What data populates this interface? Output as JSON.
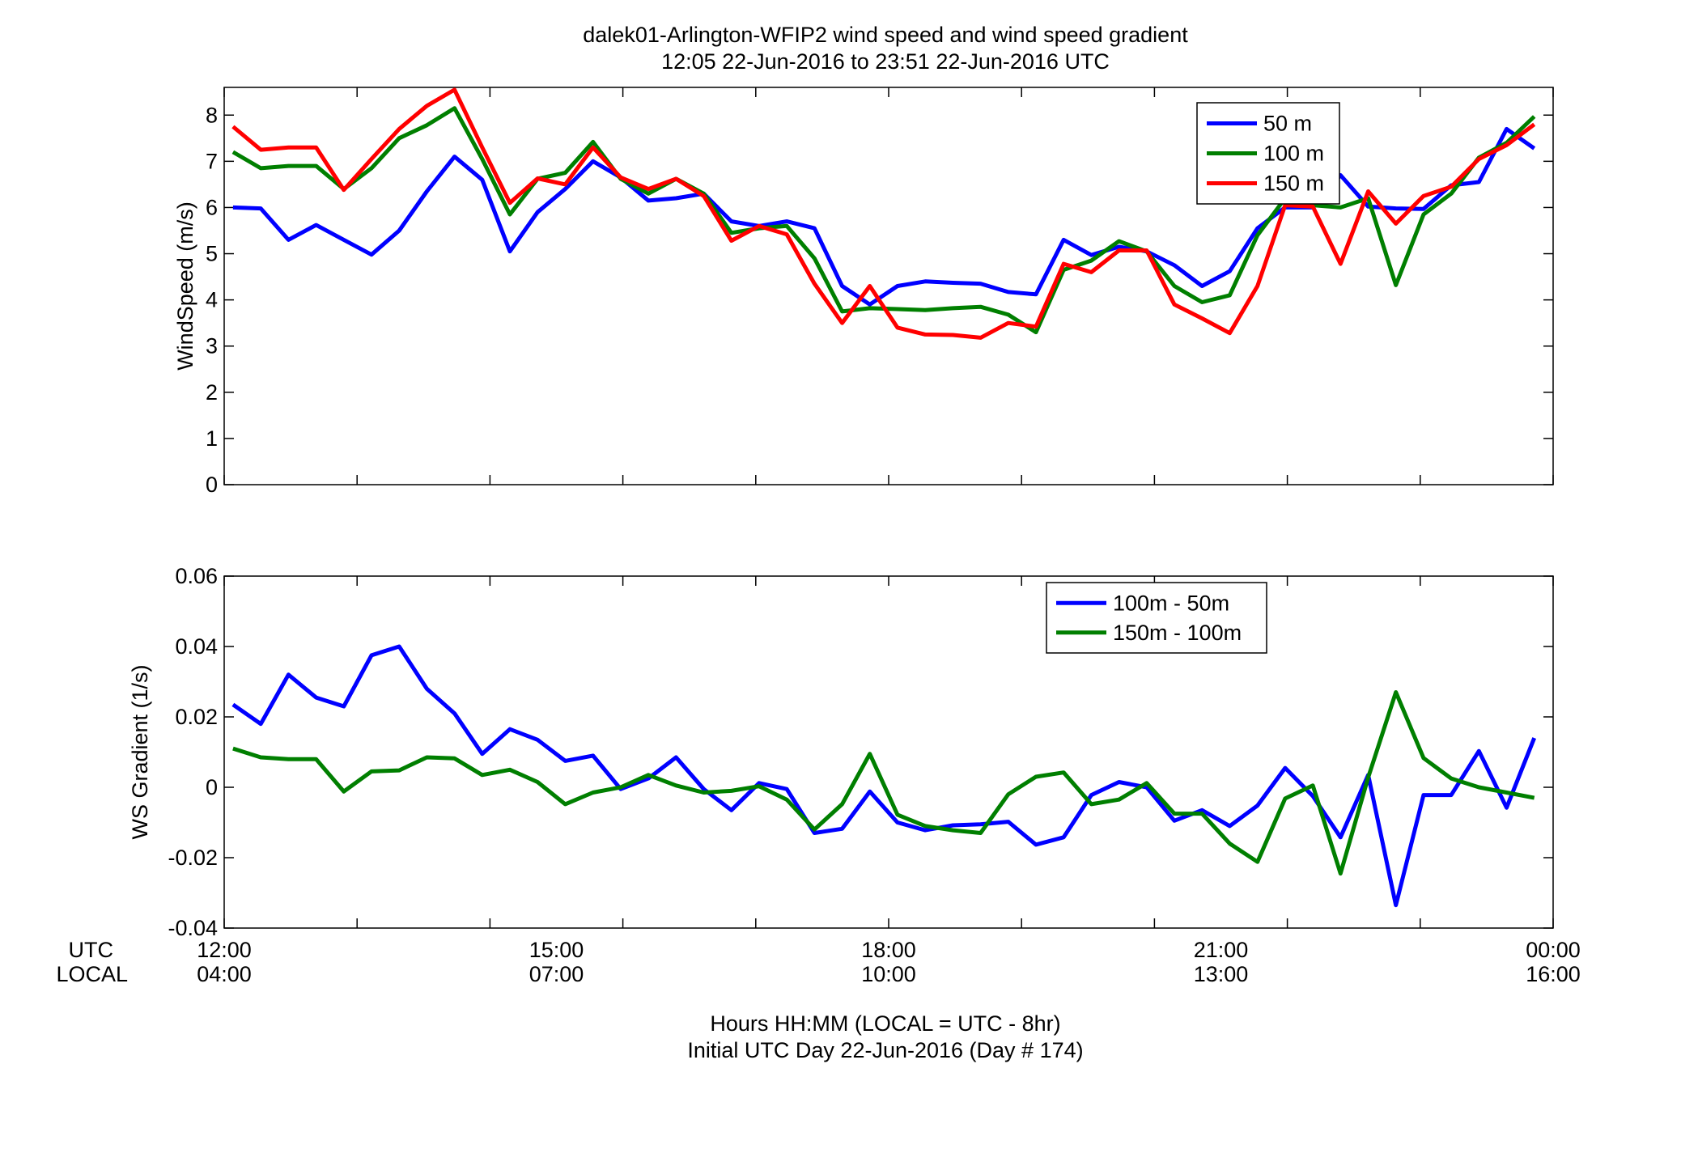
{
  "colors": {
    "blue": "#0000ff",
    "green": "#007f00",
    "red": "#ff0000",
    "axis": "#000000"
  },
  "figure": {
    "title_line1": "dalek01-Arlington-WFIP2  wind speed and wind speed gradient",
    "title_line2": "12:05 22-Jun-2016 to 23:51 22-Jun-2016  UTC",
    "row_label_utc": "UTC",
    "row_label_local": "LOCAL",
    "footer_line1": "Hours HH:MM  (LOCAL = UTC - 8hr)",
    "footer_line2": "Initial UTC Day 22-Jun-2016 (Day # 174)"
  },
  "chart_data": [
    {
      "type": "line",
      "ylabel": "WindSpeed (m/s)",
      "xlim": [
        12.0,
        24.0
      ],
      "ylim": [
        0,
        8.6
      ],
      "yticks": [
        0,
        1,
        2,
        3,
        4,
        5,
        6,
        7,
        8
      ],
      "xticks": [
        12,
        13.2,
        14.4,
        15.6,
        16.8,
        18.0,
        19.2,
        20.4,
        21.6,
        22.8,
        24.0
      ],
      "grid": false,
      "legend_position": "top-right",
      "x": [
        12.08,
        12.33,
        12.58,
        12.83,
        13.08,
        13.33,
        13.58,
        13.83,
        14.08,
        14.33,
        14.58,
        14.83,
        15.08,
        15.33,
        15.58,
        15.83,
        16.08,
        16.33,
        16.58,
        16.83,
        17.08,
        17.33,
        17.58,
        17.83,
        18.08,
        18.33,
        18.58,
        18.83,
        19.08,
        19.33,
        19.58,
        19.83,
        20.08,
        20.33,
        20.58,
        20.83,
        21.08,
        21.33,
        21.58,
        21.83,
        22.08,
        22.33,
        22.58,
        22.83,
        23.08,
        23.33,
        23.58,
        23.83
      ],
      "series": [
        {
          "name": "50 m",
          "color": "#0000ff",
          "values": [
            6.0,
            5.98,
            5.3,
            5.62,
            5.3,
            4.98,
            5.5,
            6.35,
            7.1,
            6.6,
            5.05,
            5.9,
            6.4,
            7.0,
            6.65,
            6.15,
            6.2,
            6.3,
            5.7,
            5.6,
            5.7,
            5.55,
            4.3,
            3.9,
            4.3,
            4.4,
            4.37,
            4.35,
            4.17,
            4.12,
            5.3,
            4.97,
            5.15,
            5.05,
            4.75,
            4.3,
            4.62,
            5.55,
            6.0,
            6.0,
            6.7,
            6.02,
            5.98,
            5.97,
            6.48,
            6.55,
            7.7,
            7.28
          ]
        },
        {
          "name": "100 m",
          "color": "#007f00",
          "values": [
            7.2,
            6.85,
            6.9,
            6.9,
            6.4,
            6.85,
            7.5,
            7.78,
            8.15,
            7.05,
            5.85,
            6.62,
            6.75,
            7.42,
            6.62,
            6.3,
            6.62,
            6.3,
            5.45,
            5.55,
            5.6,
            4.9,
            3.75,
            3.82,
            3.8,
            3.78,
            3.82,
            3.85,
            3.68,
            3.3,
            4.65,
            4.85,
            5.27,
            5.05,
            4.3,
            3.95,
            4.1,
            5.4,
            6.2,
            6.05,
            6.0,
            6.2,
            4.32,
            5.85,
            6.3,
            7.08,
            7.4,
            7.97
          ]
        },
        {
          "name": "150 m",
          "color": "#ff0000",
          "values": [
            7.75,
            7.25,
            7.3,
            7.3,
            6.38,
            7.05,
            7.7,
            8.2,
            8.55,
            7.3,
            6.1,
            6.63,
            6.5,
            7.3,
            6.65,
            6.4,
            6.62,
            6.25,
            5.28,
            5.6,
            5.42,
            4.35,
            3.5,
            4.3,
            3.4,
            3.25,
            3.24,
            3.18,
            3.5,
            3.42,
            4.78,
            4.6,
            5.07,
            5.07,
            3.9,
            3.6,
            3.28,
            4.3,
            6.05,
            6.02,
            4.78,
            6.35,
            5.65,
            6.25,
            6.45,
            7.05,
            7.35,
            7.8
          ]
        }
      ]
    },
    {
      "type": "line",
      "ylabel": "WS Gradient (1/s)",
      "xlim": [
        12.0,
        24.0
      ],
      "ylim": [
        -0.04,
        0.06
      ],
      "yticks": [
        -0.04,
        -0.02,
        0,
        0.02,
        0.04,
        0.06
      ],
      "ytick_labels": [
        "-0.04",
        "-0.02",
        "0",
        "0.02",
        "0.04",
        "0.06"
      ],
      "xticks": [
        12,
        13.2,
        14.4,
        15.6,
        16.8,
        18.0,
        19.2,
        20.4,
        21.6,
        22.8,
        24.0
      ],
      "xtick_labels_utc": {
        "12": "12:00",
        "15": "15:00",
        "18": "18:00",
        "21": "21:00",
        "24": "00:00"
      },
      "xtick_labels_local": {
        "12": "04:00",
        "15": "07:00",
        "18": "10:00",
        "21": "13:00",
        "24": "16:00"
      },
      "grid": false,
      "legend_position": "top-right",
      "x": [
        12.08,
        12.33,
        12.58,
        12.83,
        13.08,
        13.33,
        13.58,
        13.83,
        14.08,
        14.33,
        14.58,
        14.83,
        15.08,
        15.33,
        15.58,
        15.83,
        16.08,
        16.33,
        16.58,
        16.83,
        17.08,
        17.33,
        17.58,
        17.83,
        18.08,
        18.33,
        18.58,
        18.83,
        19.08,
        19.33,
        19.58,
        19.83,
        20.08,
        20.33,
        20.58,
        20.83,
        21.08,
        21.33,
        21.58,
        21.83,
        22.08,
        22.33,
        22.58,
        22.83,
        23.08,
        23.33,
        23.58,
        23.83
      ],
      "series": [
        {
          "name": "100m - 50m",
          "color": "#0000ff",
          "values": [
            0.0235,
            0.018,
            0.032,
            0.0255,
            0.023,
            0.0375,
            0.04,
            0.028,
            0.021,
            0.0095,
            0.0165,
            0.0135,
            0.0075,
            0.009,
            -0.0005,
            0.0025,
            0.0085,
            -0.0005,
            -0.0065,
            0.0012,
            -0.0005,
            -0.013,
            -0.0118,
            -0.0012,
            -0.01,
            -0.0122,
            -0.0108,
            -0.0105,
            -0.0098,
            -0.0163,
            -0.0142,
            -0.0022,
            0.0015,
            0.0,
            -0.0095,
            -0.0065,
            -0.011,
            -0.0052,
            0.0055,
            -0.0025,
            -0.0142,
            0.0035,
            -0.0335,
            -0.0022,
            -0.0022,
            0.0103,
            -0.0058,
            0.014
          ]
        },
        {
          "name": "150m - 100m",
          "color": "#007f00",
          "values": [
            0.011,
            0.0085,
            0.008,
            0.008,
            -0.0012,
            0.0045,
            0.0048,
            0.0085,
            0.0082,
            0.0035,
            0.005,
            0.0015,
            -0.0048,
            -0.0015,
            0.0,
            0.0035,
            0.0005,
            -0.0015,
            -0.001,
            0.0003,
            -0.0035,
            -0.012,
            -0.0048,
            0.0095,
            -0.0078,
            -0.011,
            -0.0122,
            -0.013,
            -0.002,
            0.003,
            0.0042,
            -0.0048,
            -0.0035,
            0.0012,
            -0.0075,
            -0.0075,
            -0.016,
            -0.0212,
            -0.0032,
            0.0005,
            -0.0245,
            0.0028,
            0.027,
            0.0083,
            0.0025,
            0.0,
            -0.0015,
            -0.003
          ]
        }
      ]
    }
  ]
}
